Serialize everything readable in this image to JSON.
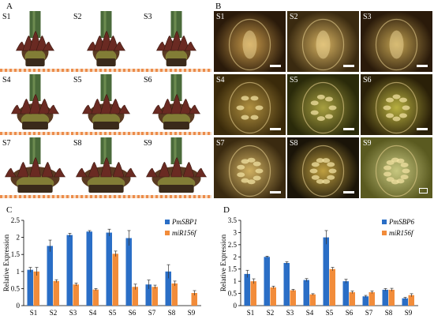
{
  "panels": {
    "A": {
      "letter": "A",
      "labels": [
        "S1",
        "S2",
        "S3",
        "S4",
        "S5",
        "S6",
        "S7",
        "S8",
        "S9"
      ]
    },
    "B": {
      "letter": "B",
      "labels": [
        "S1",
        "S2",
        "S3",
        "S4",
        "S5",
        "S6",
        "S7",
        "S8",
        "S9"
      ]
    },
    "C": {
      "letter": "C"
    },
    "D": {
      "letter": "D"
    }
  },
  "colors": {
    "blue": "#2a6ec6",
    "orange": "#f28c3a"
  },
  "chart_data": [
    {
      "type": "bar",
      "title": "",
      "ylabel": "Relative Expression",
      "xlabel": "",
      "categories": [
        "S1",
        "S2",
        "S3",
        "S4",
        "S5",
        "S6",
        "S7",
        "S8",
        "S9"
      ],
      "ylim": [
        0,
        2.5
      ],
      "yticks": [
        "0",
        "0.5",
        "1",
        "1.5",
        "2",
        "2.5"
      ],
      "legend_position": "top-right",
      "series": [
        {
          "name": "PmSBP1",
          "color": "#2a6ec6",
          "values": [
            1.05,
            1.75,
            2.07,
            2.17,
            2.14,
            1.98,
            0.62,
            1.0,
            0.0
          ],
          "errors": [
            0.07,
            0.17,
            0.05,
            0.03,
            0.1,
            0.22,
            0.13,
            0.2,
            0.0
          ]
        },
        {
          "name": "miR156f",
          "color": "#f28c3a",
          "values": [
            1.0,
            0.72,
            0.62,
            0.47,
            1.52,
            0.55,
            0.55,
            0.65,
            0.37
          ],
          "errors": [
            0.12,
            0.04,
            0.04,
            0.03,
            0.08,
            0.08,
            0.05,
            0.07,
            0.07
          ]
        }
      ]
    },
    {
      "type": "bar",
      "title": "",
      "ylabel": "Relative Expression",
      "xlabel": "",
      "categories": [
        "S1",
        "S2",
        "S3",
        "S4",
        "S5",
        "S6",
        "S7",
        "S8",
        "S9"
      ],
      "ylim": [
        0,
        3.5
      ],
      "yticks": [
        "0",
        "0.5",
        "1",
        "1.5",
        "2",
        "2.5",
        "3",
        "3.5"
      ],
      "legend_position": "top-right",
      "series": [
        {
          "name": "PmSBP6",
          "color": "#2a6ec6",
          "values": [
            1.3,
            2.0,
            1.75,
            1.05,
            2.8,
            1.0,
            0.38,
            0.65,
            0.3
          ],
          "errors": [
            0.15,
            0.03,
            0.05,
            0.06,
            0.28,
            0.08,
            0.04,
            0.05,
            0.04
          ]
        },
        {
          "name": "miR156f",
          "color": "#f28c3a",
          "values": [
            1.0,
            0.75,
            0.63,
            0.46,
            1.5,
            0.55,
            0.55,
            0.65,
            0.43
          ],
          "errors": [
            0.1,
            0.05,
            0.04,
            0.03,
            0.07,
            0.05,
            0.05,
            0.06,
            0.06
          ]
        }
      ]
    }
  ]
}
